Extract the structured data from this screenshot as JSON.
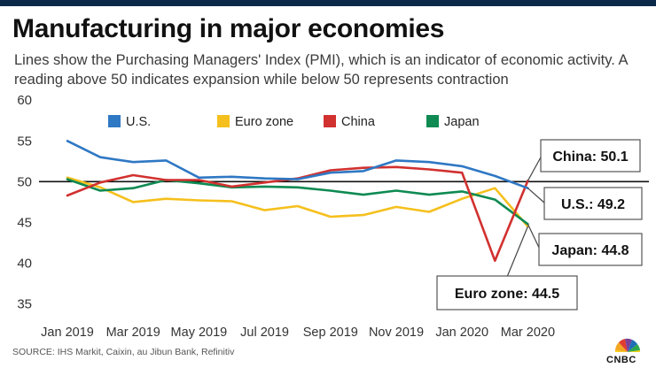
{
  "title": "Manufacturing in major economies",
  "subtitle": "Lines show the Purchasing Managers' Index (PMI), which is an indicator of economic activity. A reading above 50 indicates expansion while below 50 represents contraction",
  "source": "SOURCE: IHS Markit, Caixin, au Jibun Bank, Refinitiv",
  "logo": {
    "text": "CNBC",
    "icon": "peacock-logo-icon"
  },
  "chart_data": {
    "type": "line",
    "x": [
      "Jan 2019",
      "Feb 2019",
      "Mar 2019",
      "Apr 2019",
      "May 2019",
      "Jun 2019",
      "Jul 2019",
      "Aug 2019",
      "Sep 2019",
      "Oct 2019",
      "Nov 2019",
      "Dec 2019",
      "Jan 2020",
      "Feb 2020",
      "Mar 2020"
    ],
    "xticks": [
      "Jan 2019",
      "Mar 2019",
      "May 2019",
      "Jul 2019",
      "Sep 2019",
      "Nov 2019",
      "Jan 2020",
      "Mar 2020"
    ],
    "yticks": [
      35,
      40,
      45,
      50,
      55,
      60
    ],
    "ylim": [
      33,
      61
    ],
    "reference_line": 50,
    "grid": false,
    "legend_position": "top",
    "series": [
      {
        "name": "U.S.",
        "color": "#2f78c4",
        "values": [
          55.0,
          53.0,
          52.4,
          52.6,
          50.5,
          50.6,
          50.4,
          50.3,
          51.1,
          51.3,
          52.6,
          52.4,
          51.9,
          50.7,
          49.2
        ]
      },
      {
        "name": "Euro zone",
        "color": "#f5c01d",
        "values": [
          50.5,
          49.3,
          47.5,
          47.9,
          47.7,
          47.6,
          46.5,
          47.0,
          45.7,
          45.9,
          46.9,
          46.3,
          47.9,
          49.2,
          44.5
        ]
      },
      {
        "name": "China",
        "color": "#d1312f",
        "values": [
          48.3,
          49.9,
          50.8,
          50.2,
          50.2,
          49.4,
          49.9,
          50.4,
          51.4,
          51.7,
          51.8,
          51.5,
          51.1,
          40.3,
          50.1
        ]
      },
      {
        "name": "Japan",
        "color": "#0e8a52",
        "values": [
          50.3,
          48.9,
          49.2,
          50.2,
          49.8,
          49.3,
          49.4,
          49.3,
          48.9,
          48.4,
          48.9,
          48.4,
          48.8,
          47.8,
          44.8
        ]
      }
    ],
    "annotations": [
      {
        "series": "China",
        "text": "China: 50.1"
      },
      {
        "series": "U.S.",
        "text": "U.S.: 49.2"
      },
      {
        "series": "Japan",
        "text": "Japan: 44.8"
      },
      {
        "series": "Euro zone",
        "text": "Euro zone: 44.5"
      }
    ]
  }
}
